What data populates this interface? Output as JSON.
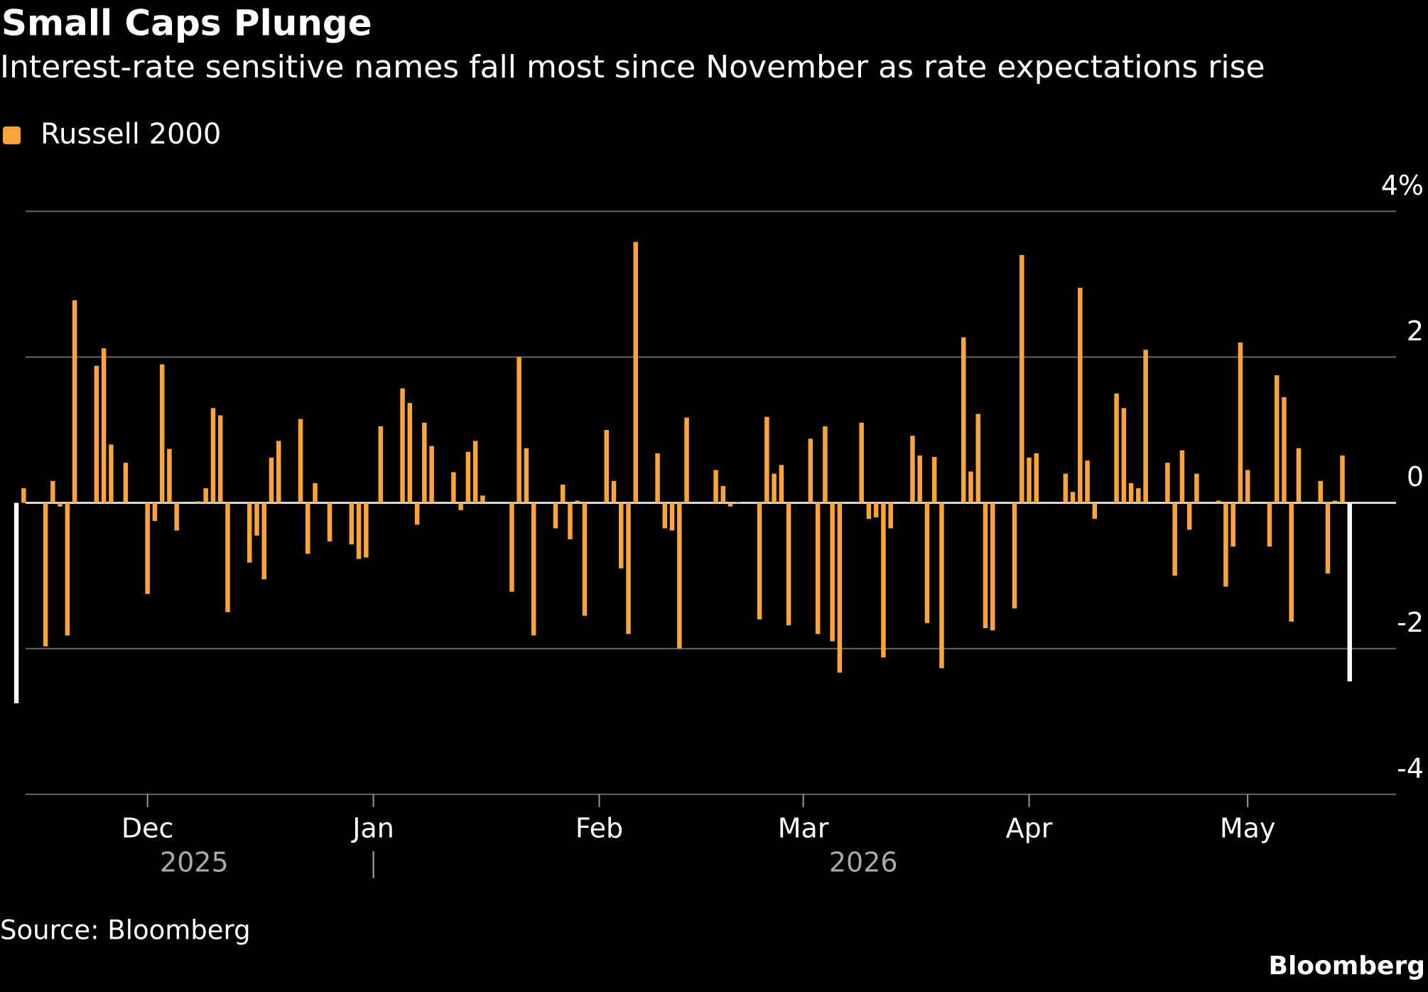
{
  "chart_data": {
    "type": "bar",
    "title": "Small Caps Plunge",
    "subtitle": "Interest-rate sensitive names fall most since November as rate expectations rise",
    "source": "Source: Bloomberg",
    "brand": "Bloomberg",
    "highlight_ends": true,
    "highlight_color": "#ffffff",
    "series": [
      {
        "name": "Russell 2000",
        "color": "#fba43a",
        "values": [
          -2.75,
          0.2,
          null,
          null,
          -1.97,
          0.3,
          -0.05,
          -1.82,
          2.78,
          null,
          null,
          1.88,
          2.12,
          0.8,
          null,
          0.55,
          null,
          null,
          -1.25,
          -0.25,
          1.9,
          0.74,
          -0.38,
          null,
          null,
          0.02,
          0.2,
          1.3,
          1.2,
          -1.5,
          null,
          null,
          -0.82,
          -0.45,
          -1.05,
          0.62,
          0.85,
          null,
          null,
          1.15,
          -0.7,
          0.27,
          null,
          -0.53,
          null,
          null,
          -0.57,
          -0.77,
          -0.75,
          null,
          1.05,
          null,
          null,
          1.57,
          1.37,
          -0.3,
          1.1,
          0.78,
          null,
          null,
          0.42,
          -0.1,
          0.7,
          0.85,
          0.1,
          null,
          null,
          null,
          -1.22,
          2.0,
          0.75,
          -1.82,
          null,
          null,
          -0.35,
          0.25,
          -0.5,
          0.03,
          -1.55,
          null,
          null,
          1.0,
          0.3,
          -0.9,
          -1.8,
          3.58,
          null,
          null,
          0.68,
          -0.35,
          -0.38,
          -2.0,
          1.17,
          null,
          null,
          null,
          0.45,
          0.23,
          -0.05,
          0.01,
          null,
          null,
          -1.6,
          1.18,
          0.4,
          0.52,
          -1.68,
          null,
          null,
          0.88,
          -1.8,
          1.05,
          -1.9,
          -2.33,
          null,
          null,
          1.1,
          -0.22,
          -0.2,
          -2.12,
          -0.35,
          null,
          null,
          0.92,
          0.65,
          -1.65,
          0.63,
          -2.27,
          null,
          null,
          2.27,
          0.43,
          1.22,
          -1.72,
          -1.75,
          null,
          null,
          -1.45,
          3.4,
          0.62,
          0.68,
          null,
          null,
          null,
          0.4,
          0.15,
          2.95,
          0.58,
          -0.22,
          null,
          null,
          1.5,
          1.3,
          0.27,
          0.2,
          2.1,
          null,
          null,
          0.55,
          -1.0,
          0.72,
          -0.37,
          0.4,
          null,
          null,
          0.03,
          -1.15,
          -0.6,
          2.2,
          0.45,
          null,
          null,
          -0.6,
          1.75,
          1.45,
          -1.63,
          0.75,
          null,
          null,
          0.3,
          -0.97,
          0.03,
          0.65,
          -2.45
        ]
      }
    ],
    "ylim": [
      -4,
      4
    ],
    "yticks": [
      -4,
      -2,
      0,
      2,
      {
        "value": 4,
        "label": "4%"
      }
    ],
    "grid": true,
    "xticks": [
      {
        "value": 18,
        "label": "Dec"
      },
      {
        "value": 49,
        "label": "Jan"
      },
      {
        "value": 80,
        "label": "Feb"
      },
      {
        "value": 108,
        "label": "Mar"
      },
      {
        "value": 139,
        "label": "Apr"
      },
      {
        "value": 169,
        "label": "May"
      }
    ],
    "year_labels": [
      {
        "value": 24.4,
        "label": "2025"
      },
      {
        "value": 116.25,
        "label": "2026"
      }
    ],
    "year_dividers": [
      49
    ]
  }
}
